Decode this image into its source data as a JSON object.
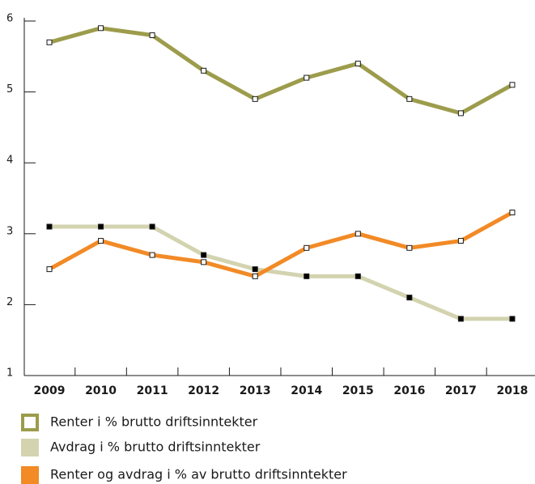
{
  "chart_data": {
    "type": "line",
    "categories": [
      "2009",
      "2010",
      "2011",
      "2012",
      "2013",
      "2014",
      "2015",
      "2016",
      "2017",
      "2018"
    ],
    "series": [
      {
        "name": "Renter i % brutto driftsinntekter",
        "color": "#9c9c4c",
        "marker": "#ffffff",
        "values": [
          5.7,
          5.9,
          5.8,
          5.3,
          4.9,
          5.2,
          5.4,
          4.9,
          4.7,
          5.1
        ]
      },
      {
        "name": "Avdrag i % brutto driftsinntekter",
        "color": "#d3d3b0",
        "marker": "#000000",
        "values": [
          3.1,
          3.1,
          3.1,
          2.7,
          2.5,
          2.4,
          2.4,
          2.1,
          1.8,
          1.8
        ]
      },
      {
        "name": "Renter og avdrag i % av brutto driftsinntekter",
        "color": "#f28a26",
        "marker": "#ffffff",
        "values": [
          2.5,
          2.9,
          2.7,
          2.6,
          2.4,
          2.8,
          3.0,
          2.8,
          2.9,
          3.3
        ]
      }
    ],
    "ylim": [
      1,
      6
    ],
    "yticks": [
      1,
      2,
      3,
      4,
      5,
      6
    ],
    "grid": false,
    "legend": "bottom"
  }
}
